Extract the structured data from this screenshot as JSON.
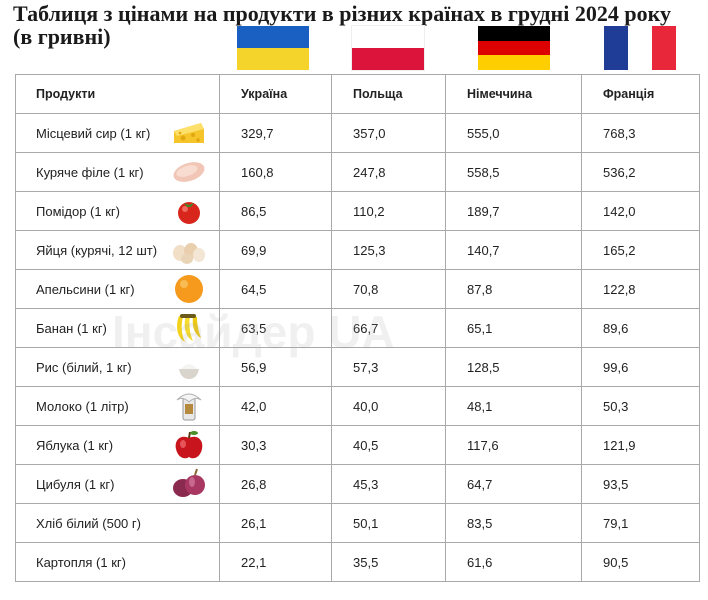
{
  "title": "Таблиця з цінами на продукти в різних країнах в грудні 2024 року (в гривні)",
  "watermark": "Інсайдер UA",
  "flags": {
    "ukraine": [
      "#1a5fc2",
      "#f4d32a"
    ],
    "poland": [
      "#ffffff",
      "#dc143c"
    ],
    "germany": [
      "#000000",
      "#dd0000",
      "#ffce00"
    ],
    "france": [
      "#1f3c96",
      "#ffffff",
      "#e8283a"
    ]
  },
  "table": {
    "headers": [
      "Продукти",
      "Україна",
      "Польща",
      "Німеччина",
      "Франція"
    ],
    "rows": [
      {
        "product": "Місцевий сир (1 кг)",
        "icon": "cheese-icon",
        "values": [
          "329,7",
          "357,0",
          "555,0",
          "768,3"
        ]
      },
      {
        "product": "Куряче філе (1 кг)",
        "icon": "chicken-fillet-icon",
        "values": [
          "160,8",
          "247,8",
          "558,5",
          "536,2"
        ]
      },
      {
        "product": "Помідор (1 кг)",
        "icon": "tomato-icon",
        "values": [
          "86,5",
          "110,2",
          "189,7",
          "142,0"
        ]
      },
      {
        "product": "Яйця (курячі, 12 шт)",
        "icon": "eggs-icon",
        "values": [
          "69,9",
          "125,3",
          "140,7",
          "165,2"
        ]
      },
      {
        "product": "Апельсини (1 кг)",
        "icon": "orange-icon",
        "values": [
          "64,5",
          "70,8",
          "87,8",
          "122,8"
        ]
      },
      {
        "product": "Банан (1 кг)",
        "icon": "banana-icon",
        "values": [
          "63,5",
          "66,7",
          "65,1",
          "89,6"
        ]
      },
      {
        "product": "Рис (білий, 1 кг)",
        "icon": "rice-icon",
        "values": [
          "56,9",
          "57,3",
          "128,5",
          "99,6"
        ]
      },
      {
        "product": "Молоко (1 літр)",
        "icon": "milk-icon",
        "values": [
          "42,0",
          "40,0",
          "48,1",
          "50,3"
        ]
      },
      {
        "product": "Яблука (1 кг)",
        "icon": "apple-icon",
        "values": [
          "30,3",
          "40,5",
          "117,6",
          "121,9"
        ]
      },
      {
        "product": "Цибуля (1 кг)",
        "icon": "onion-icon",
        "values": [
          "26,8",
          "45,3",
          "64,7",
          "93,5"
        ]
      },
      {
        "product": "Хліб білий (500 г)",
        "icon": "",
        "values": [
          "26,1",
          "50,1",
          "83,5",
          "79,1"
        ]
      },
      {
        "product": "Картопля (1 кг)",
        "icon": "",
        "values": [
          "22,1",
          "35,5",
          "61,6",
          "90,5"
        ]
      }
    ]
  }
}
